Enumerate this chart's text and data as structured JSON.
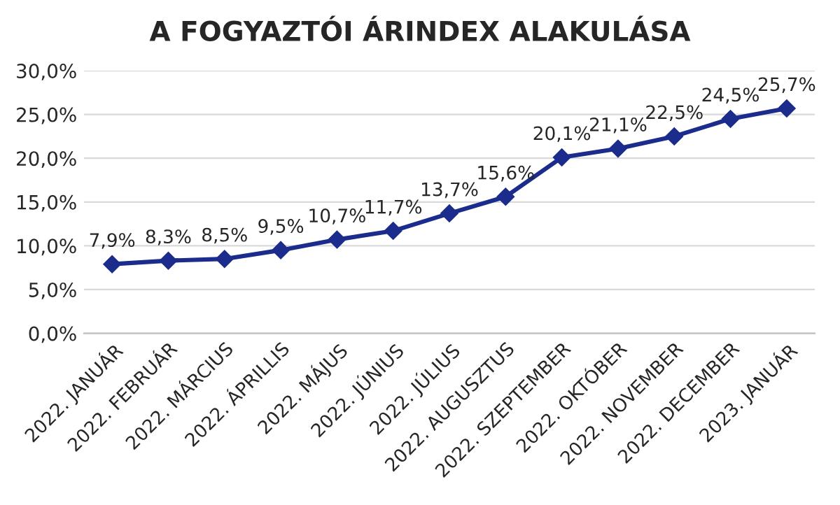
{
  "chart_data": {
    "type": "line",
    "title": "A FOGYAZTÓI ÁRINDEX ALAKULÁSA",
    "categories": [
      "2022. JANUÁR",
      "2022. FEBRUÁR",
      "2022. MÁRCIUS",
      "2022. ÁPRILLIS",
      "2022. MÁJUS",
      "2022. JÚNIUS",
      "2022. JÚLIUS",
      "2022. AUGUSZTUS",
      "2022. SZEPTEMBER",
      "2022. OKTÓBER",
      "2022. NOVEMBER",
      "2022. DECEMBER",
      "2023. JANUÁR"
    ],
    "series": [
      {
        "color": "#1c2c8c",
        "values": [
          7.9,
          8.3,
          8.5,
          9.5,
          10.7,
          11.7,
          13.7,
          15.6,
          20.1,
          21.1,
          22.5,
          24.5,
          25.7
        ],
        "value_labels": [
          "7,9%",
          "8,3%",
          "8,5%",
          "9,5%",
          "10,7%",
          "11,7%",
          "13,7%",
          "15,6%",
          "20,1%",
          "21,1%",
          "22,5%",
          "24,5%",
          "25,7%"
        ]
      }
    ],
    "ylim": [
      0,
      30
    ],
    "yticks": [
      {
        "value": 0,
        "label": "0,0%"
      },
      {
        "value": 5,
        "label": "5,0%"
      },
      {
        "value": 10,
        "label": "10,0%"
      },
      {
        "value": 15,
        "label": "15,0%"
      },
      {
        "value": 20,
        "label": "20,0%"
      },
      {
        "value": 25,
        "label": "25,0%"
      },
      {
        "value": 30,
        "label": "30,0%"
      }
    ],
    "grid": "y",
    "marker": "diamond",
    "line_style": "solid"
  }
}
